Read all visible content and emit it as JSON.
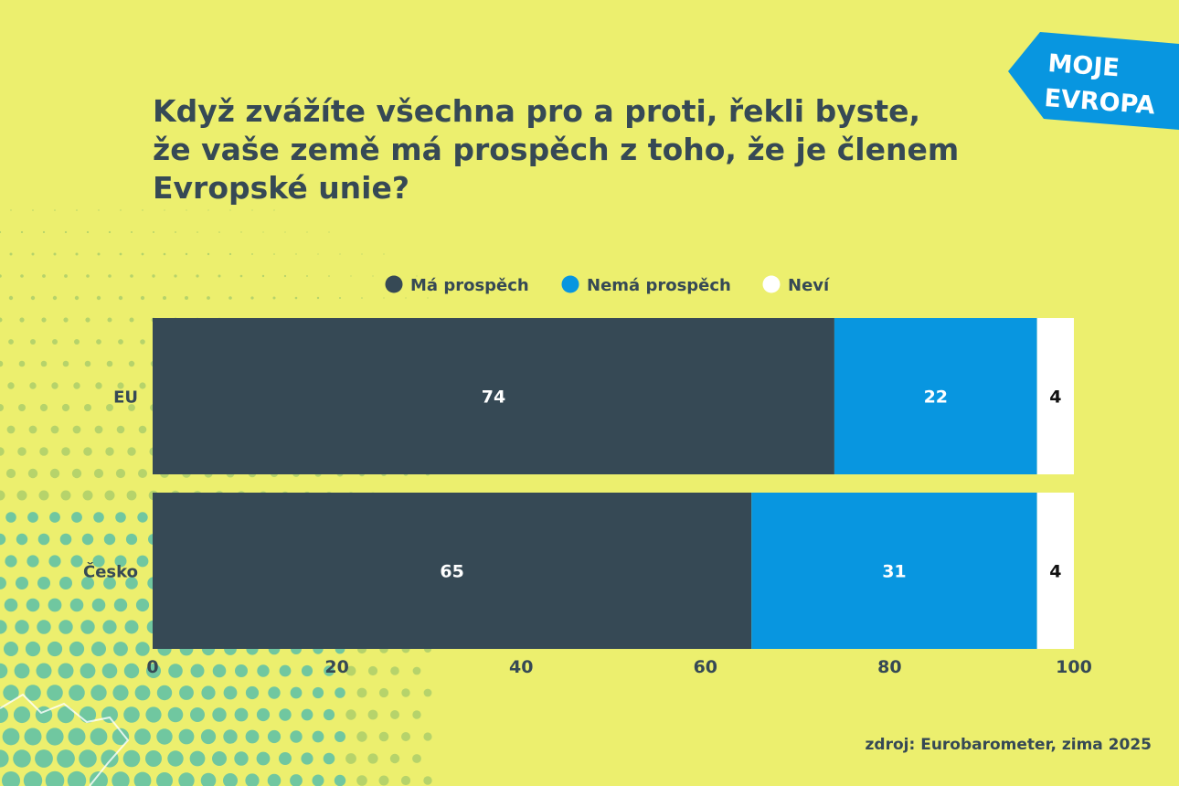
{
  "title_lines": [
    "Když zvážíte všechna pro a proti, řekli byste,",
    "že vaše země má prospěch z toho, že je členem",
    "Evropské unie?"
  ],
  "brand": {
    "line1": "MOJE",
    "line2": "EVROPA",
    "color": "#0896e0"
  },
  "source": "zdroj: Eurobarometer, zima 2025",
  "colors": {
    "text": "#364955",
    "background": "#ecef6e",
    "dark": "#364955",
    "blue": "#0896e0",
    "white": "#ffffff"
  },
  "chart_data": {
    "type": "bar",
    "orientation": "horizontal",
    "stacked": true,
    "categories": [
      "EU",
      "Česko"
    ],
    "series": [
      {
        "name": "Má prospěch",
        "values": [
          74,
          65
        ],
        "color": "#364955",
        "label_color": "#ffffff"
      },
      {
        "name": "Nemá prospěch",
        "values": [
          22,
          31
        ],
        "color": "#0896e0",
        "label_color": "#ffffff"
      },
      {
        "name": "Neví",
        "values": [
          4,
          4
        ],
        "color": "#ffffff",
        "label_color": "#111111"
      }
    ],
    "xlim": [
      0,
      100
    ],
    "xticks": [
      0,
      20,
      40,
      60,
      80,
      100
    ],
    "legend_position": "top-center",
    "grid": false,
    "title": "Když zvážíte všechna pro a proti, řekli byste, že vaše země má prospěch z toho, že je členem Evropské unie?"
  }
}
